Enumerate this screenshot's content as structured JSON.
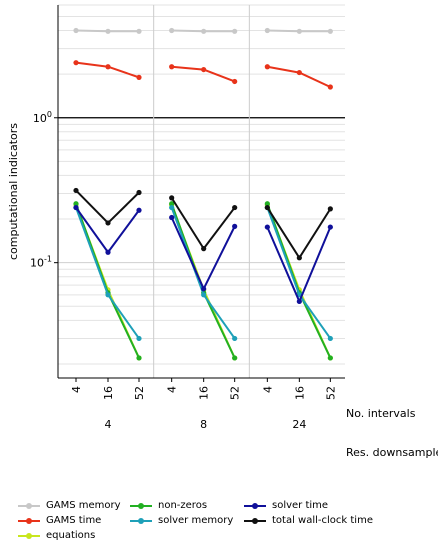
{
  "chart_data": {
    "type": "line",
    "y_scale": "log",
    "ylim": [
      0.016,
      6.0
    ],
    "ylabel": "computational indicators",
    "y_tick_labels": [
      {
        "value": 1,
        "label": "10^0"
      },
      {
        "value": 0.1,
        "label": "10^-1"
      }
    ],
    "grid": true,
    "legend_position": "bottom",
    "panels": [
      {
        "group_label": "4",
        "x": [
          "4",
          "16",
          "52"
        ]
      },
      {
        "group_label": "8",
        "x": [
          "4",
          "16",
          "52"
        ]
      },
      {
        "group_label": "24",
        "x": [
          "4",
          "16",
          "52"
        ]
      }
    ],
    "x_axis_title": "No. intervals",
    "group_axis_title": "Res. downsampled",
    "series": [
      {
        "name": "GAMS memory",
        "color": "#c8c8c8",
        "panels": [
          [
            4.0,
            3.95,
            3.95
          ],
          [
            4.0,
            3.95,
            3.95
          ],
          [
            4.0,
            3.95,
            3.95
          ]
        ]
      },
      {
        "name": "GAMS time",
        "color": "#e8331a",
        "panels": [
          [
            2.4,
            2.25,
            1.9
          ],
          [
            2.25,
            2.15,
            1.78
          ],
          [
            2.25,
            2.05,
            1.63
          ]
        ]
      },
      {
        "name": "equations",
        "color": "#c8e61e",
        "panels": [
          [
            0.25,
            0.065,
            0.022
          ],
          [
            0.25,
            0.065,
            0.022
          ],
          [
            0.25,
            0.065,
            0.022
          ]
        ]
      },
      {
        "name": "non-zeros",
        "color": "#22b022",
        "panels": [
          [
            0.255,
            0.062,
            0.022
          ],
          [
            0.255,
            0.062,
            0.022
          ],
          [
            0.255,
            0.062,
            0.022
          ]
        ]
      },
      {
        "name": "solver memory",
        "color": "#1ea0b8",
        "panels": [
          [
            0.24,
            0.06,
            0.03
          ],
          [
            0.24,
            0.06,
            0.03
          ],
          [
            0.24,
            0.06,
            0.03
          ]
        ]
      },
      {
        "name": "solver time",
        "color": "#10109a",
        "panels": [
          [
            0.24,
            0.118,
            0.23
          ],
          [
            0.205,
            0.066,
            0.178
          ],
          [
            0.176,
            0.054,
            0.176
          ]
        ]
      },
      {
        "name": "total wall-clock time",
        "color": "#111111",
        "panels": [
          [
            0.315,
            0.188,
            0.305
          ],
          [
            0.28,
            0.125,
            0.24
          ],
          [
            0.24,
            0.108,
            0.235
          ]
        ]
      }
    ],
    "legend_columns": [
      [
        "GAMS memory",
        "GAMS time",
        "equations"
      ],
      [
        "non-zeros",
        "solver memory"
      ],
      [
        "solver time",
        "total wall-clock time"
      ]
    ]
  }
}
